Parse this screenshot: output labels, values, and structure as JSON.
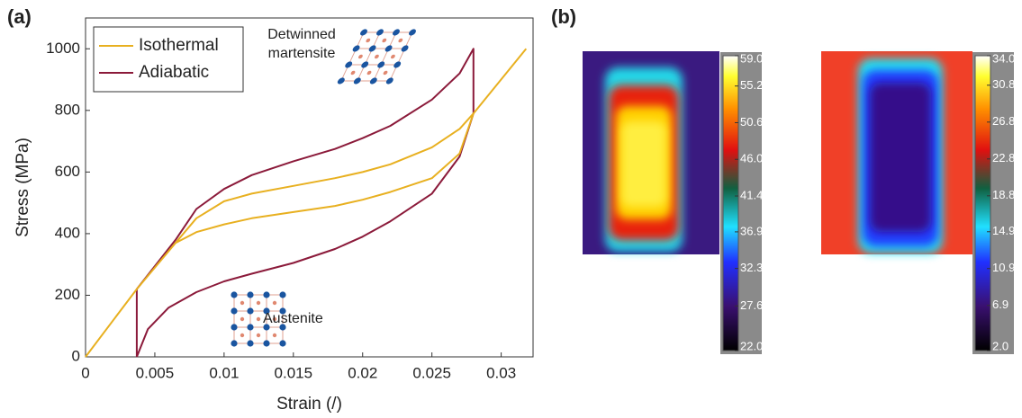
{
  "panel_labels": [
    "(a)",
    "(b)"
  ],
  "chart_data": [
    {
      "type": "line",
      "xlabel": "Strain (/)",
      "ylabel": "Stress (MPa)",
      "xlim": [
        0,
        0.0323
      ],
      "ylim": [
        0,
        1100
      ],
      "xticks": [
        0,
        0.005,
        0.01,
        0.015,
        0.02,
        0.025,
        0.03
      ],
      "yticks": [
        0,
        200,
        400,
        600,
        800,
        1000
      ],
      "legend": "upper left",
      "annotations": [
        "Detwinned martensite",
        "Austenite"
      ],
      "series": [
        {
          "name": "Isothermal",
          "color": "#e8b020",
          "x": [
            0,
            0.0037,
            0.0065,
            0.008,
            0.01,
            0.012,
            0.015,
            0.018,
            0.02,
            0.022,
            0.025,
            0.027,
            0.028,
            0.0318,
            null,
            0.028,
            0.027,
            0.025,
            0.022,
            0.02,
            0.018,
            0.015,
            0.012,
            0.01,
            0.008,
            0.0065
          ],
          "values": [
            0,
            220,
            370,
            450,
            505,
            530,
            555,
            580,
            600,
            625,
            680,
            740,
            790,
            1000,
            null,
            790,
            660,
            580,
            535,
            510,
            490,
            470,
            450,
            430,
            405,
            370
          ]
        },
        {
          "name": "Adiabatic",
          "color": "#8b1a3a",
          "x": [
            0.0037,
            0.0037,
            0.0065,
            0.008,
            0.01,
            0.012,
            0.015,
            0.018,
            0.02,
            0.022,
            0.025,
            0.027,
            0.028,
            0.028,
            0.027,
            0.025,
            0.022,
            0.02,
            0.018,
            0.015,
            0.012,
            0.01,
            0.008,
            0.006,
            0.0045,
            0.0037
          ],
          "values": [
            0,
            220,
            380,
            480,
            545,
            590,
            635,
            675,
            710,
            750,
            835,
            920,
            1000,
            790,
            650,
            530,
            440,
            390,
            350,
            305,
            270,
            245,
            210,
            160,
            90,
            0
          ]
        }
      ]
    },
    {
      "type": "heatmap",
      "clim": [
        22,
        59
      ],
      "colorbar_ticks": [
        {
          "value": 59,
          "label": "59.0"
        },
        55.2,
        50.6,
        {
          "value": 46,
          "label": "46.0"
        },
        41.4,
        36.9,
        32.3,
        27.6,
        {
          "value": 22,
          "label": "22.0"
        }
      ]
    },
    {
      "type": "heatmap",
      "clim": [
        2,
        34
      ],
      "colorbar_ticks": [
        {
          "value": 34,
          "label": "34.0"
        },
        30.8,
        26.8,
        22.8,
        18.8,
        14.9,
        10.9,
        6.9,
        {
          "value": 2,
          "label": "2.0"
        }
      ]
    }
  ]
}
